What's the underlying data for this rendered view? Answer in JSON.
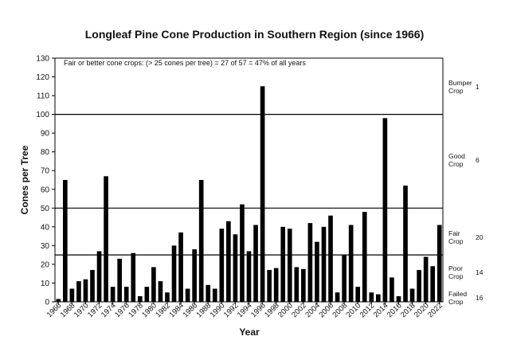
{
  "chart_data": {
    "type": "bar",
    "title": "Longleaf Pine Cone Production in Southern Region (since 1966)",
    "xlabel": "Year",
    "ylabel": "Cones per Tree",
    "ylim": [
      0,
      130
    ],
    "y_ticks": [
      0,
      10,
      20,
      30,
      40,
      50,
      60,
      70,
      80,
      90,
      100,
      110,
      120,
      130
    ],
    "grid": false,
    "annotation": "Fair or better cone crops: (> 25 cones per tree) = 27 of 57 = 47% of all years",
    "x_ticks": [
      "1966",
      "1968",
      "1970",
      "1972",
      "1974",
      "1976",
      "1978",
      "1980",
      "1982",
      "1984",
      "1986",
      "1988",
      "1990",
      "1992",
      "1994",
      "1996",
      "1998",
      "2000",
      "2002",
      "2004",
      "2006",
      "2008",
      "2010",
      "2012",
      "2014",
      "2016",
      "2018",
      "2020",
      "2022"
    ],
    "categories": [
      "1966",
      "1967",
      "1968",
      "1969",
      "1970",
      "1971",
      "1972",
      "1973",
      "1974",
      "1975",
      "1976",
      "1977",
      "1978",
      "1979",
      "1980",
      "1981",
      "1982",
      "1983",
      "1984",
      "1985",
      "1986",
      "1987",
      "1988",
      "1989",
      "1990",
      "1991",
      "1992",
      "1993",
      "1994",
      "1995",
      "1996",
      "1997",
      "1998",
      "1999",
      "2000",
      "2001",
      "2002",
      "2003",
      "2004",
      "2005",
      "2006",
      "2007",
      "2008",
      "2009",
      "2010",
      "2011",
      "2012",
      "2013",
      "2014",
      "2015",
      "2016",
      "2017",
      "2018",
      "2019",
      "2020",
      "2021",
      "2022"
    ],
    "values": [
      1.5,
      65,
      7,
      11,
      12,
      17,
      27,
      67,
      8,
      23,
      8,
      26,
      3,
      8,
      18.5,
      11,
      5,
      30,
      37,
      7,
      28,
      65,
      9,
      7,
      39,
      43,
      36,
      52,
      27,
      41,
      115,
      17,
      18,
      40,
      39,
      18.5,
      17.5,
      42,
      32,
      40,
      46,
      5,
      25,
      41,
      8,
      48,
      5,
      4,
      98,
      13,
      3,
      62,
      7,
      17,
      24,
      19,
      41
    ],
    "reference_lines": [
      {
        "value": 100,
        "label": "Bumper Crop",
        "count": "1"
      },
      {
        "value": 50,
        "label": "Good Crop",
        "count": "6"
      },
      {
        "value": 25,
        "label": "Fair Crop",
        "count": "20"
      },
      {
        "value": 0,
        "label": "Poor Crop",
        "count": "14"
      },
      {
        "value": 0,
        "label": "Failed Crop",
        "count": "16"
      }
    ],
    "bar_color": "#000000"
  }
}
